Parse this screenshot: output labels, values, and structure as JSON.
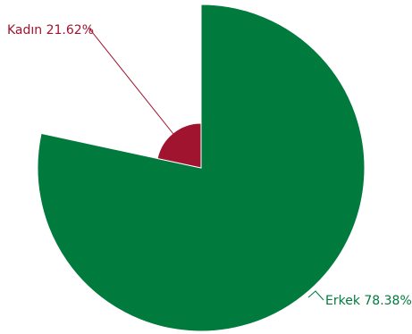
{
  "chart_data": {
    "type": "pie",
    "variant": "rose",
    "slices": [
      {
        "name": "Erkek",
        "value": 78.38,
        "label": "Erkek 78.38%",
        "color": "#007a3d"
      },
      {
        "name": "Kadın",
        "value": 21.62,
        "label": "Kadın 21.62%",
        "color": "#a0142f"
      }
    ],
    "legend": "none"
  }
}
